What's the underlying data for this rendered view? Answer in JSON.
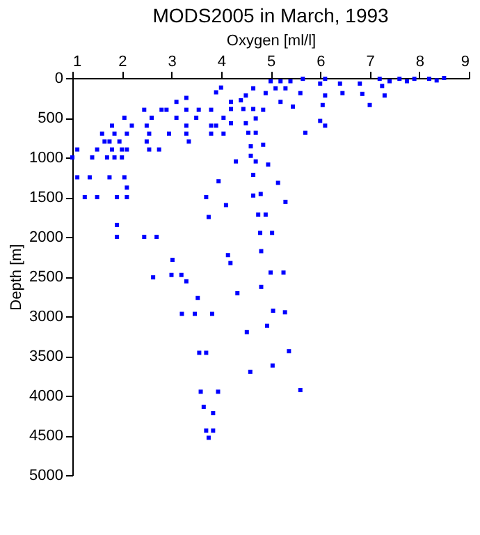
{
  "chart_data": {
    "type": "scatter",
    "title": "MODS2005 in March, 1993",
    "xlabel": "Oxygen [ml/l]",
    "ylabel": "Depth [m]",
    "xlim": [
      1,
      9
    ],
    "xticks": [
      1,
      2,
      3,
      4,
      5,
      6,
      7,
      8,
      9
    ],
    "ylim": [
      5000,
      0
    ],
    "yticks": [
      0,
      500,
      1000,
      1500,
      2000,
      2500,
      3000,
      3500,
      4000,
      4500,
      5000
    ],
    "grid": false,
    "marker": "square",
    "series": [
      {
        "color": "#0000ff",
        "x": [
          1.0,
          1.1,
          1.1,
          1.35,
          1.25,
          1.5,
          1.4,
          1.5,
          1.6,
          1.65,
          1.7,
          1.85,
          2.0,
          1.8,
          2.0,
          2.1,
          1.75,
          1.95,
          1.8,
          2.05,
          1.85,
          2.1,
          2.2,
          1.75,
          2.05,
          2.1,
          1.9,
          2.1,
          1.9,
          1.9,
          2.45,
          2.7,
          2.45,
          2.6,
          2.5,
          2.55,
          2.5,
          2.55,
          2.75,
          2.8,
          2.9,
          3.1,
          3.3,
          3.1,
          3.3,
          3.3,
          3.55,
          3.5,
          3.3,
          2.95,
          3.35,
          3.8,
          3.8,
          3.8,
          3.9,
          4.0,
          4.05,
          4.05,
          3.9,
          4.2,
          4.3,
          3.95,
          3.7,
          3.75,
          4.1,
          5.0,
          5.2,
          5.4,
          5.1,
          5.3,
          4.9,
          4.65,
          4.5,
          4.4,
          4.2,
          4.45,
          4.65,
          4.2,
          4.5,
          4.7,
          4.85,
          4.7,
          4.55,
          4.6,
          4.85,
          4.6,
          4.7,
          4.95,
          4.65,
          4.65,
          4.8,
          5.15,
          4.75,
          4.9,
          5.3,
          5.2,
          5.45,
          5.65,
          5.6,
          5.7,
          6.0,
          6.1,
          6.1,
          6.05,
          6.0,
          6.1,
          6.4,
          6.45,
          6.8,
          6.85,
          7.0,
          7.2,
          7.25,
          7.3,
          7.4,
          7.6,
          7.75,
          7.9,
          8.2,
          8.35,
          8.5,
          3.02,
          2.63,
          3.0,
          3.2,
          3.3,
          3.53,
          3.21,
          3.47,
          3.82,
          3.56,
          3.7,
          3.59,
          3.94,
          3.65,
          3.84,
          3.7,
          3.84,
          3.75,
          4.14,
          4.19,
          4.33,
          4.52,
          4.59,
          4.79,
          5.03,
          4.81,
          5.0,
          5.26,
          4.81,
          5.05,
          5.29,
          4.93,
          5.37,
          5.04,
          5.6
        ],
        "values": [
          1000,
          900,
          1250,
          1250,
          1500,
          1500,
          1000,
          900,
          700,
          800,
          1000,
          1000,
          1000,
          900,
          900,
          900,
          800,
          800,
          600,
          500,
          700,
          700,
          600,
          1250,
          1250,
          1380,
          1500,
          1500,
          1850,
          2000,
          2000,
          2000,
          400,
          500,
          600,
          700,
          800,
          900,
          900,
          400,
          400,
          300,
          250,
          500,
          400,
          600,
          400,
          500,
          700,
          700,
          800,
          400,
          600,
          700,
          180,
          120,
          700,
          500,
          600,
          300,
          1050,
          1300,
          1500,
          1750,
          1600,
          40,
          40,
          40,
          130,
          130,
          190,
          130,
          220,
          280,
          390,
          390,
          390,
          570,
          570,
          510,
          400,
          690,
          690,
          860,
          840,
          980,
          1050,
          1090,
          1220,
          1480,
          1460,
          1320,
          1720,
          1720,
          1560,
          300,
          360,
          10,
          190,
          690,
          70,
          10,
          220,
          340,
          540,
          600,
          70,
          190,
          70,
          200,
          340,
          10,
          100,
          220,
          40,
          10,
          40,
          10,
          10,
          30,
          0,
          2290,
          2510,
          2480,
          2480,
          2560,
          2770,
          2970,
          2970,
          2970,
          3460,
          3460,
          3950,
          3950,
          4140,
          4220,
          4440,
          4440,
          4530,
          2230,
          2330,
          2710,
          3200,
          3700,
          1950,
          1950,
          2180,
          2450,
          2450,
          2630,
          2930,
          2950,
          3120,
          3440,
          3620,
          3930
        ]
      }
    ]
  }
}
